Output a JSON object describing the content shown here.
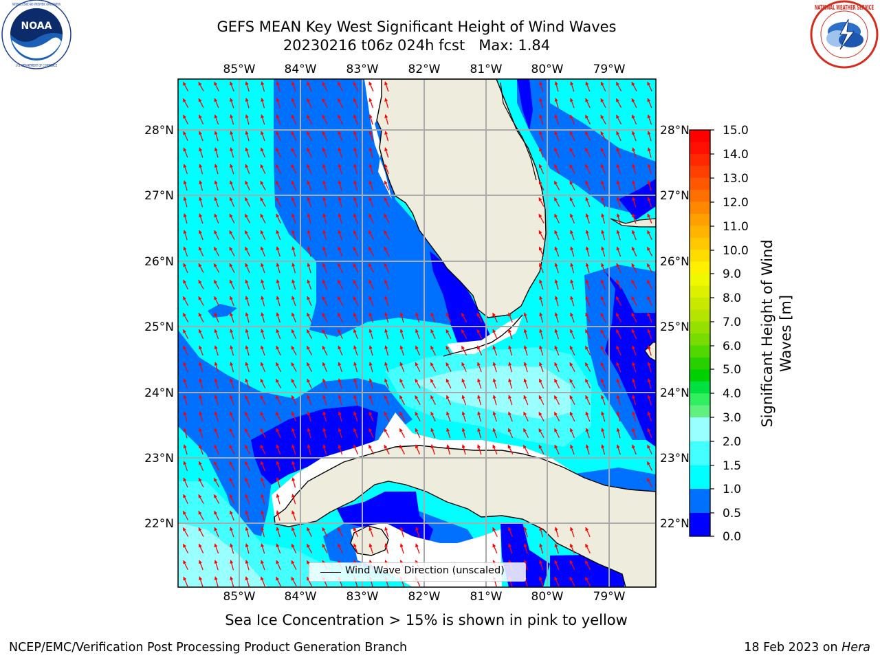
{
  "title": {
    "line1": "GEFS MEAN Key West Significant Height of Wind Waves",
    "line2": "20230216 t06z 024h fcst   Max: 1.84"
  },
  "map": {
    "lon_labels": [
      "85°W",
      "84°W",
      "83°W",
      "82°W",
      "81°W",
      "80°W",
      "79°W"
    ],
    "lat_labels": [
      "28°N",
      "27°N",
      "26°N",
      "25°N",
      "24°N",
      "23°N",
      "22°N"
    ],
    "legend": "Wind Wave Direction (unscaled)",
    "colors": {
      "land": "#eeecdc",
      "ocean_base": "#00ffff",
      "level_0_0p5": "#0000ff",
      "level_0p5_1": "#0070ff",
      "level_1_1p5": "#00ffff",
      "level_1p5_2": "#44ffff",
      "level_2_3": "#99ffff",
      "arrow": "#ff0000"
    },
    "arrow_direction": "from south-east toward north-west"
  },
  "colorbar": {
    "label": "Significant Height of Wind Waves [m]",
    "ticks": [
      "15.0",
      "14.0",
      "13.0",
      "12.0",
      "11.0",
      "10.0",
      "9.0",
      "8.0",
      "7.0",
      "6.0",
      "5.0",
      "4.0",
      "3.0",
      "2.0",
      "1.5",
      "1.0",
      "0.5",
      "0.0"
    ],
    "colors_top_to_bottom": [
      "#ff0000",
      "#ff2000",
      "#ff4000",
      "#ff6000",
      "#ff8000",
      "#ffa000",
      "#ffc000",
      "#ffe000",
      "#ffff00",
      "#e0f000",
      "#c0e000",
      "#a0e000",
      "#80e000",
      "#40e000",
      "#00d000",
      "#00ff40",
      "#40ff80",
      "#99ffff",
      "#44ffff",
      "#00ffff",
      "#0070ff",
      "#0000ff"
    ]
  },
  "ice_note": "Sea Ice Concentration > 15% is shown in pink to yellow",
  "footer": {
    "left": "NCEP/EMC/Verification Post Processing Product Generation Branch",
    "right_prefix": "18 Feb 2023 on ",
    "right_host": "Hera"
  },
  "logos": {
    "noaa": "NOAA",
    "nws": "NATIONAL WEATHER SERVICE",
    "noaa_ring_top": "NATIONAL OCEANIC AND ATMOSPHERIC ADMINISTRATION",
    "noaa_ring_bottom": "U.S. DEPARTMENT OF COMMERCE"
  }
}
